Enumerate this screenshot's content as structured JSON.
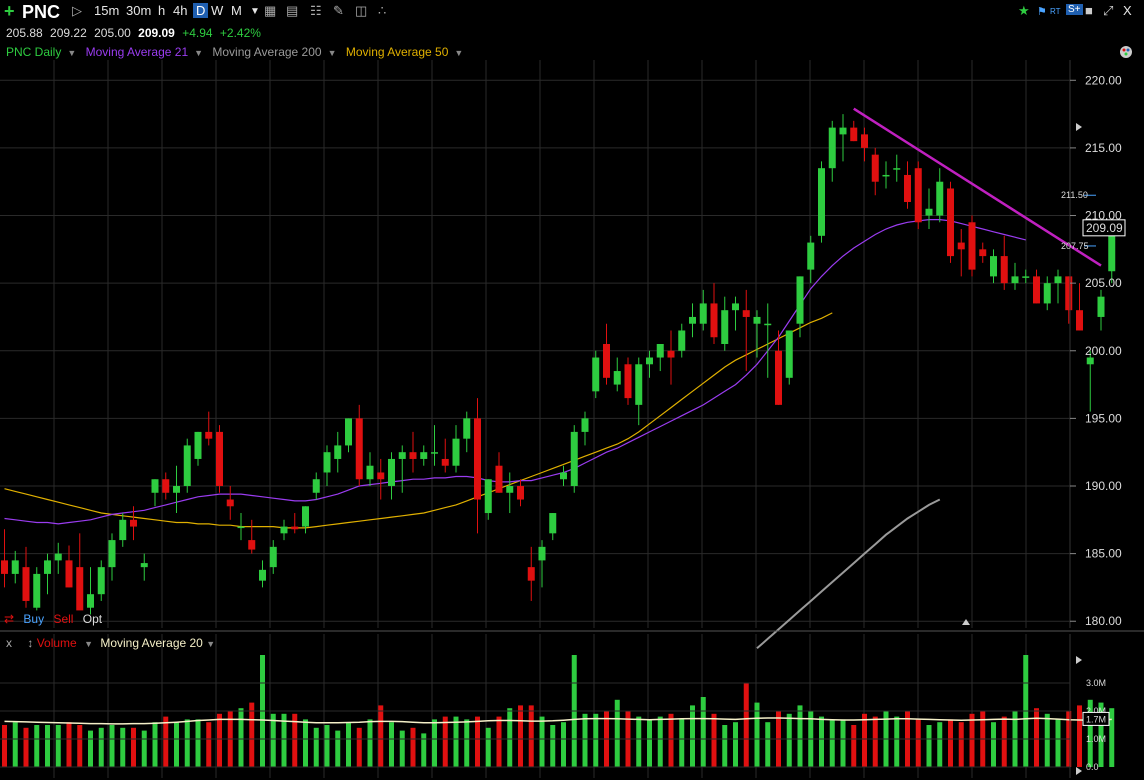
{
  "toolbar": {
    "symbol": "PNC",
    "timeframes": [
      "15m",
      "30m",
      "h",
      "4h",
      "D",
      "W",
      "M"
    ],
    "selected_timeframe": "D",
    "rt_label": "RT",
    "close_label": "X"
  },
  "quote": {
    "open": "205.88",
    "high": "209.22",
    "low": "205.00",
    "last": "209.09",
    "change": "+4.94",
    "change_pct": "+2.42%"
  },
  "legend": {
    "price_series": "PNC Daily",
    "ma21": "Moving Average 21",
    "ma200": "Moving Average 200",
    "ma50": "Moving Average 50"
  },
  "orders": {
    "buy": "Buy",
    "sell": "Sell",
    "opt": "Opt"
  },
  "volume_panel": {
    "close": "x",
    "label": "Volume",
    "ma_label": "Moving Average 20"
  },
  "colors": {
    "up": "#2ecc40",
    "down": "#e01010",
    "ma21": "#9a3cf0",
    "ma50": "#e0b000",
    "ma200": "#9a9a9a",
    "trendline": "#c020c0",
    "vol_ma": "#f5f0c8",
    "grid": "#2a2a2a"
  },
  "chart_data": {
    "type": "candlestick",
    "price_axis": {
      "ylim": [
        179.5,
        221.5
      ],
      "ticks": [
        "220.00",
        "215.00",
        "210.00",
        "205.00",
        "200.00",
        "195.00",
        "190.00",
        "185.00",
        "180.00"
      ]
    },
    "last_price_label": "209.09",
    "side_markers": [
      "211.50",
      "207.75"
    ],
    "candles": [
      [
        184.5,
        186.8,
        182.5,
        183.5
      ],
      [
        183.5,
        185.2,
        182.8,
        184.5
      ],
      [
        184.0,
        185.5,
        181.0,
        181.5
      ],
      [
        181.0,
        184.0,
        180.8,
        183.5
      ],
      [
        183.5,
        185.0,
        182.0,
        184.5
      ],
      [
        184.5,
        185.8,
        183.5,
        185.0
      ],
      [
        184.5,
        185.6,
        182.5,
        182.5
      ],
      [
        184.0,
        186.5,
        181.0,
        180.8
      ],
      [
        181.0,
        184.0,
        180.5,
        182.0
      ],
      [
        182.0,
        184.5,
        181.5,
        184.0
      ],
      [
        184.0,
        186.5,
        183.0,
        186.0
      ],
      [
        186.0,
        188.0,
        185.5,
        187.5
      ],
      [
        187.5,
        188.5,
        186.0,
        187.0
      ],
      [
        184.0,
        185.0,
        183.0,
        184.3
      ],
      [
        189.5,
        190.5,
        188.5,
        190.5
      ],
      [
        190.5,
        191.0,
        189.0,
        189.5
      ],
      [
        189.5,
        191.5,
        188.0,
        190.0
      ],
      [
        190.0,
        193.5,
        189.5,
        193.0
      ],
      [
        192.0,
        194.0,
        191.5,
        194.0
      ],
      [
        194.0,
        195.5,
        193.0,
        193.5
      ],
      [
        194.0,
        194.5,
        189.5,
        190.0
      ],
      [
        189.0,
        190.0,
        187.5,
        188.5
      ],
      [
        187.0,
        188.0,
        186.0,
        187.0
      ],
      [
        186.0,
        187.5,
        185.0,
        185.3
      ],
      [
        183.0,
        184.5,
        182.5,
        183.8
      ],
      [
        184.0,
        186.0,
        183.5,
        185.5
      ],
      [
        186.5,
        187.5,
        186.0,
        187.0
      ],
      [
        187.0,
        188.0,
        186.5,
        186.8
      ],
      [
        187.0,
        188.5,
        186.5,
        188.5
      ],
      [
        189.5,
        191.0,
        189.0,
        190.5
      ],
      [
        191.0,
        193.0,
        190.0,
        192.5
      ],
      [
        192.0,
        194.0,
        191.0,
        193.0
      ],
      [
        193.0,
        195.0,
        192.5,
        195.0
      ],
      [
        195.0,
        196.0,
        190.0,
        190.5
      ],
      [
        190.5,
        192.5,
        190.0,
        191.5
      ],
      [
        191.0,
        192.0,
        189.0,
        190.5
      ],
      [
        190.0,
        192.5,
        189.0,
        192.0
      ],
      [
        192.0,
        193.0,
        189.5,
        192.5
      ],
      [
        192.5,
        194.0,
        191.0,
        192.0
      ],
      [
        192.0,
        193.0,
        191.5,
        192.5
      ],
      [
        192.5,
        194.5,
        191.5,
        192.5
      ],
      [
        192.0,
        193.5,
        191.0,
        191.5
      ],
      [
        191.5,
        194.5,
        191.0,
        193.5
      ],
      [
        193.5,
        195.5,
        192.5,
        195.0
      ],
      [
        195.0,
        196.5,
        186.5,
        189.0
      ],
      [
        188.0,
        190.5,
        187.5,
        190.5
      ],
      [
        191.5,
        192.5,
        189.5,
        189.5
      ],
      [
        189.5,
        191.0,
        188.0,
        190.0
      ],
      [
        190.0,
        190.5,
        188.5,
        189.0
      ],
      [
        184.0,
        185.5,
        181.5,
        183.0
      ],
      [
        184.5,
        186.0,
        182.5,
        185.5
      ],
      [
        186.5,
        188.0,
        186.0,
        188.0
      ],
      [
        190.5,
        191.5,
        190.0,
        191.0
      ],
      [
        190.0,
        194.5,
        189.5,
        194.0
      ],
      [
        194.0,
        195.5,
        193.0,
        195.0
      ],
      [
        197.0,
        200.0,
        196.5,
        199.5
      ],
      [
        200.5,
        202.0,
        197.5,
        198.0
      ],
      [
        197.5,
        199.5,
        197.0,
        198.5
      ],
      [
        199.0,
        199.5,
        196.0,
        196.5
      ],
      [
        196.0,
        199.5,
        194.5,
        199.0
      ],
      [
        199.0,
        200.0,
        198.0,
        199.5
      ],
      [
        199.5,
        200.5,
        198.5,
        200.5
      ],
      [
        200.0,
        201.5,
        197.5,
        199.5
      ],
      [
        200.0,
        202.0,
        199.5,
        201.5
      ],
      [
        202.0,
        203.5,
        201.0,
        202.5
      ],
      [
        202.0,
        204.5,
        201.5,
        203.5
      ],
      [
        203.5,
        205.0,
        200.5,
        201.0
      ],
      [
        200.5,
        204.0,
        200.0,
        203.0
      ],
      [
        203.0,
        204.0,
        201.5,
        203.5
      ],
      [
        203.0,
        204.5,
        198.5,
        202.5
      ],
      [
        202.0,
        203.0,
        199.5,
        202.5
      ],
      [
        202.0,
        203.5,
        198.0,
        202.0
      ],
      [
        200.0,
        201.5,
        196.0,
        196.0
      ],
      [
        198.0,
        201.5,
        197.5,
        201.5
      ],
      [
        202.0,
        205.5,
        201.0,
        205.5
      ],
      [
        206.0,
        208.5,
        205.0,
        208.0
      ],
      [
        208.5,
        214.0,
        208.0,
        213.5
      ],
      [
        213.5,
        217.0,
        212.5,
        216.5
      ],
      [
        216.0,
        217.5,
        214.0,
        216.5
      ],
      [
        216.5,
        217.0,
        215.5,
        215.5
      ],
      [
        216.0,
        216.5,
        214.0,
        215.0
      ],
      [
        214.5,
        215.0,
        211.5,
        212.5
      ],
      [
        213.0,
        214.0,
        212.0,
        213.0
      ],
      [
        213.5,
        214.5,
        212.5,
        213.5
      ],
      [
        213.0,
        214.0,
        210.5,
        211.0
      ],
      [
        213.5,
        214.0,
        209.0,
        209.5
      ],
      [
        210.0,
        212.0,
        209.0,
        210.5
      ],
      [
        210.0,
        213.5,
        209.5,
        212.5
      ],
      [
        212.0,
        212.5,
        206.5,
        207.0
      ],
      [
        208.0,
        209.0,
        205.5,
        207.5
      ],
      [
        209.5,
        210.0,
        205.5,
        206.0
      ],
      [
        207.5,
        208.0,
        206.5,
        207.0
      ],
      [
        205.5,
        207.5,
        205.0,
        207.0
      ],
      [
        207.0,
        208.5,
        204.5,
        205.0
      ],
      [
        205.0,
        206.5,
        204.5,
        205.5
      ],
      [
        205.5,
        206.0,
        205.0,
        205.5
      ],
      [
        205.5,
        206.0,
        203.5,
        203.5
      ],
      [
        203.5,
        205.5,
        203.0,
        205.0
      ],
      [
        205.0,
        206.0,
        203.5,
        205.5
      ],
      [
        205.5,
        205.5,
        202.0,
        203.0
      ],
      [
        203.0,
        205.0,
        201.5,
        201.5
      ],
      [
        199.0,
        200.0,
        195.5,
        199.5
      ],
      [
        202.5,
        204.5,
        201.5,
        204.0
      ],
      [
        205.88,
        209.22,
        205.0,
        209.09
      ]
    ],
    "ma21": [
      187.6,
      187.5,
      187.4,
      187.3,
      187.3,
      187.2,
      187.3,
      187.4,
      187.5,
      187.7,
      187.9,
      188.0,
      188.1,
      188.2,
      188.4,
      188.6,
      188.8,
      189.0,
      189.2,
      189.3,
      189.4,
      189.4,
      189.4,
      189.3,
      189.2,
      189.1,
      189.0,
      188.9,
      188.9,
      189.0,
      189.2,
      189.4,
      189.7,
      190.0,
      190.1,
      190.2,
      190.3,
      190.4,
      190.5,
      190.5,
      190.6,
      190.6,
      190.7,
      190.7,
      190.6,
      190.4,
      190.3,
      190.3,
      190.4,
      190.4,
      190.6,
      190.8,
      191.0,
      191.3,
      191.7,
      192.1,
      192.5,
      192.8,
      193.2,
      193.6,
      194.0,
      194.4,
      194.8,
      195.2,
      195.6,
      196.0,
      196.5,
      197.0,
      197.5,
      198.2,
      199.0,
      200.0,
      201.0,
      202.2,
      203.4,
      204.6,
      205.5,
      206.3,
      207.0,
      207.6,
      208.1,
      208.6,
      209.0,
      209.3,
      209.5,
      209.6,
      209.7,
      209.7,
      209.6,
      209.4,
      209.2,
      209.0,
      208.8,
      208.6,
      208.4,
      208.2
    ],
    "ma21_start": 0,
    "ma50": [
      189.8,
      189.6,
      189.4,
      189.2,
      189.0,
      188.8,
      188.6,
      188.4,
      188.2,
      188.0,
      187.9,
      187.8,
      187.7,
      187.6,
      187.5,
      187.4,
      187.3,
      187.3,
      187.2,
      187.2,
      187.1,
      187.1,
      187.0,
      187.0,
      187.0,
      187.0,
      186.9,
      186.9,
      186.9,
      187.0,
      187.1,
      187.2,
      187.3,
      187.4,
      187.5,
      187.6,
      187.7,
      187.8,
      187.9,
      188.0,
      188.2,
      188.4,
      188.6,
      188.9,
      189.2,
      189.5,
      189.8,
      190.1,
      190.4,
      190.7,
      191.0,
      191.3,
      191.6,
      191.9,
      192.2,
      192.5,
      192.8,
      193.1,
      193.5,
      194.0,
      194.6,
      195.2,
      195.8,
      196.4,
      197.0,
      197.6,
      198.2,
      198.8,
      199.3,
      199.7,
      200.1,
      200.5,
      200.9,
      201.3,
      201.7,
      202.1,
      202.4,
      202.8
    ],
    "ma50_start": 0,
    "ma200": [
      178.0,
      178.7,
      179.4,
      180.1,
      180.8,
      181.5,
      182.2,
      182.9,
      183.6,
      184.3,
      185.0,
      185.7,
      186.4,
      187.0,
      187.6,
      188.1,
      188.6,
      189.0
    ],
    "ma200_start": 70,
    "trendline": {
      "from": [
        79,
        217.9
      ],
      "to": [
        102,
        206.3
      ]
    },
    "volume_axis": {
      "ylim": [
        0,
        4.0
      ],
      "ticks": [
        "3.0M",
        "2.0M",
        "1.0M",
        "0.0"
      ],
      "current_label": "1.7M"
    },
    "volume": [
      1.5,
      1.6,
      1.4,
      1.5,
      1.5,
      1.5,
      1.6,
      1.5,
      1.3,
      1.4,
      1.5,
      1.4,
      1.4,
      1.3,
      1.6,
      1.8,
      1.6,
      1.7,
      1.7,
      1.6,
      1.9,
      2.0,
      2.1,
      2.3,
      4.0,
      1.9,
      1.9,
      1.9,
      1.7,
      1.4,
      1.5,
      1.3,
      1.6,
      1.4,
      1.7,
      2.2,
      1.6,
      1.3,
      1.4,
      1.2,
      1.7,
      1.8,
      1.8,
      1.7,
      1.8,
      1.4,
      1.8,
      2.1,
      2.2,
      2.2,
      1.8,
      1.5,
      1.6,
      4.0,
      1.9,
      1.9,
      2.0,
      2.4,
      2.0,
      1.8,
      1.7,
      1.8,
      1.9,
      1.7,
      2.2,
      2.5,
      1.9,
      1.5,
      1.6,
      3.0,
      2.3,
      1.6,
      2.0,
      1.9,
      2.2,
      2.0,
      1.8,
      1.7,
      1.7,
      1.5,
      1.9,
      1.8,
      2.0,
      1.8,
      2.0,
      1.7,
      1.5,
      1.6,
      1.7,
      1.6,
      1.9,
      2.0,
      1.6,
      1.8,
      2.0,
      4.0,
      2.1,
      1.9,
      1.7,
      2.0,
      2.2,
      2.4,
      2.3,
      2.1
    ],
    "volume_ma": [
      1.63,
      1.62,
      1.61,
      1.6,
      1.59,
      1.58,
      1.57,
      1.56,
      1.55,
      1.55,
      1.54,
      1.54,
      1.55,
      1.55,
      1.56,
      1.58,
      1.6,
      1.63,
      1.66,
      1.68,
      1.7,
      1.7,
      1.7,
      1.69,
      1.68,
      1.66,
      1.64,
      1.62,
      1.6,
      1.58,
      1.58,
      1.58,
      1.59,
      1.6,
      1.62,
      1.63,
      1.63,
      1.62,
      1.6,
      1.58,
      1.58,
      1.59,
      1.6,
      1.61,
      1.63,
      1.65,
      1.66,
      1.66,
      1.65,
      1.64,
      1.64,
      1.65,
      1.67,
      1.7,
      1.72,
      1.73,
      1.73,
      1.72,
      1.71,
      1.7,
      1.69,
      1.7,
      1.71,
      1.72,
      1.73,
      1.73,
      1.72,
      1.71,
      1.7,
      1.72,
      1.74,
      1.75,
      1.75,
      1.74,
      1.73,
      1.72,
      1.7,
      1.69,
      1.68,
      1.68,
      1.69,
      1.7,
      1.71,
      1.72,
      1.72,
      1.71,
      1.7,
      1.69,
      1.68,
      1.67,
      1.68,
      1.69,
      1.7,
      1.71,
      1.7,
      1.72,
      1.74,
      1.73,
      1.71,
      1.69,
      1.68,
      1.67,
      1.68,
      1.7
    ]
  }
}
